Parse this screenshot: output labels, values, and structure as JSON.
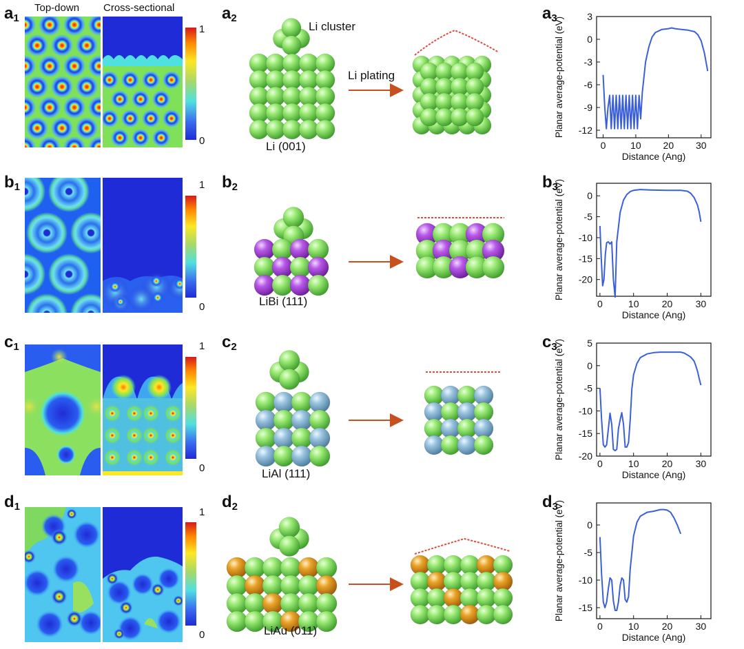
{
  "panels": {
    "a1": {
      "letter": "a",
      "sub": "1"
    },
    "a2": {
      "letter": "a",
      "sub": "2"
    },
    "a3": {
      "letter": "a",
      "sub": "3"
    },
    "b1": {
      "letter": "b",
      "sub": "1"
    },
    "b2": {
      "letter": "b",
      "sub": "2"
    },
    "b3": {
      "letter": "b",
      "sub": "3"
    },
    "c1": {
      "letter": "c",
      "sub": "1"
    },
    "c2": {
      "letter": "c",
      "sub": "2"
    },
    "c3": {
      "letter": "c",
      "sub": "3"
    },
    "d1": {
      "letter": "d",
      "sub": "1"
    },
    "d2": {
      "letter": "d",
      "sub": "2"
    },
    "d3": {
      "letter": "d",
      "sub": "3"
    }
  },
  "headers": {
    "top_down": "Top-down",
    "cross_sectional": "Cross-sectional"
  },
  "colorbar": {
    "max": "1",
    "min": "0"
  },
  "structures": {
    "li_cluster": "Li cluster",
    "li_plating": "Li plating",
    "rows": [
      {
        "label": "Li (001)"
      },
      {
        "label": "LiBi (111)"
      },
      {
        "label": "LiAl (111)"
      },
      {
        "label": "LiAu (011)"
      }
    ]
  },
  "colors": {
    "li_atom": "#8ee06a",
    "bi_atom": "#a64ad8",
    "al_atom": "#8ab8d8",
    "au_atom": "#e09a20",
    "arrow": "#c8501e",
    "curve": "#3a5fd8"
  },
  "chart_data": [
    {
      "type": "line",
      "panel": "a3",
      "xlabel": "Distance (Ang)",
      "ylabel": "Planar average-potential (eV)",
      "xlim": [
        -2,
        33
      ],
      "ylim": [
        -13,
        3
      ],
      "xticks": [
        0,
        10,
        20,
        30
      ],
      "yticks": [
        3,
        0,
        -3,
        -6,
        -9,
        -12
      ],
      "x": [
        0,
        0.5,
        1,
        1.5,
        2,
        2.5,
        3,
        3.5,
        4,
        4.5,
        5,
        5.5,
        6,
        6.5,
        7,
        7.5,
        8,
        8.5,
        9,
        9.5,
        10,
        10.5,
        11,
        11.5,
        12,
        13,
        14,
        15,
        16,
        18,
        20,
        21,
        22,
        24,
        26,
        28,
        29,
        30,
        31,
        32
      ],
      "y": [
        -4.7,
        -9,
        -11.8,
        -9,
        -7.4,
        -11.8,
        -7.4,
        -11.8,
        -7.4,
        -11.8,
        -7.4,
        -11.8,
        -7.4,
        -11.8,
        -7.4,
        -11.8,
        -7.4,
        -11.8,
        -7.4,
        -11.8,
        -7.4,
        -11.8,
        -7.4,
        -10.5,
        -7,
        -3,
        -1,
        0.3,
        0.9,
        1.3,
        1.4,
        1.5,
        1.4,
        1.3,
        1.2,
        1.0,
        0.6,
        -0.2,
        -1.8,
        -4.2
      ]
    },
    {
      "type": "line",
      "panel": "b3",
      "xlabel": "Distance (Ang)",
      "ylabel": "Planar average-potential (eV)",
      "xlim": [
        -1,
        33
      ],
      "ylim": [
        -24,
        3
      ],
      "xticks": [
        0,
        10,
        20,
        30
      ],
      "yticks": [
        0,
        -5,
        -10,
        -15,
        -20
      ],
      "x": [
        0,
        0.4,
        0.8,
        1.2,
        1.6,
        2,
        2.5,
        3,
        3.5,
        4,
        4.5,
        5,
        6,
        7,
        8,
        9,
        10,
        12,
        15,
        20,
        24,
        26,
        27,
        28,
        29,
        29.5,
        30
      ],
      "y": [
        -7.2,
        -15,
        -21.5,
        -20,
        -14,
        -11.2,
        -11,
        -11.5,
        -11,
        -20,
        -24.2,
        -11,
        -4,
        -1,
        0.3,
        1,
        1.3,
        1.5,
        1.4,
        1.3,
        1.3,
        1.1,
        0.6,
        -0.4,
        -2.2,
        -3.8,
        -6.2
      ]
    },
    {
      "type": "line",
      "panel": "c3",
      "xlabel": "Distance (Ang)",
      "ylabel": "Planar average-potential (eV)",
      "xlim": [
        -1,
        33
      ],
      "ylim": [
        -20,
        5
      ],
      "xticks": [
        0,
        10,
        20,
        30
      ],
      "yticks": [
        5,
        0,
        -5,
        -10,
        -15,
        -20
      ],
      "x": [
        0,
        0.5,
        1,
        1.5,
        2,
        2.5,
        3,
        3.5,
        4,
        4.5,
        5,
        5.5,
        6,
        6.5,
        7,
        7.5,
        8,
        8.5,
        9,
        9.5,
        10,
        11,
        12,
        14,
        16,
        18,
        20,
        22,
        24,
        25,
        26,
        27,
        28,
        28.5,
        29,
        29.5,
        30
      ],
      "y": [
        -5,
        -12,
        -17.5,
        -18,
        -17.5,
        -14,
        -10.5,
        -13,
        -18.5,
        -18.8,
        -18.5,
        -14,
        -12,
        -10.4,
        -13,
        -18,
        -18,
        -17,
        -12,
        -5,
        -2,
        0.5,
        1.8,
        2.6,
        2.9,
        3.0,
        3.0,
        3.0,
        3.0,
        2.8,
        2.4,
        1.9,
        1.0,
        0,
        -1.2,
        -2.8,
        -4.3
      ]
    },
    {
      "type": "line",
      "panel": "d3",
      "xlabel": "Distance (Ang)",
      "ylabel": "Planar average-potential (eV)",
      "xlim": [
        -1,
        33
      ],
      "ylim": [
        -17,
        4
      ],
      "xticks": [
        0,
        10,
        20,
        30
      ],
      "yticks": [
        0,
        -5,
        -10,
        -15
      ],
      "x": [
        0,
        0.5,
        1,
        1.5,
        2,
        2.5,
        3,
        3.5,
        4,
        4.5,
        5,
        5.5,
        6,
        6.5,
        7,
        7.5,
        8,
        8.5,
        9,
        10,
        11,
        12,
        14,
        16,
        18,
        19,
        20,
        21,
        22,
        23,
        24
      ],
      "y": [
        -2.2,
        -9,
        -14,
        -15,
        -14,
        -11.5,
        -9.6,
        -10,
        -13.8,
        -15.5,
        -15.5,
        -14,
        -11,
        -9.6,
        -10,
        -13.5,
        -14,
        -13,
        -8,
        -2,
        0.5,
        1.6,
        2.3,
        2.5,
        2.8,
        2.8,
        2.7,
        2.3,
        1.3,
        0,
        -1.6
      ]
    }
  ]
}
